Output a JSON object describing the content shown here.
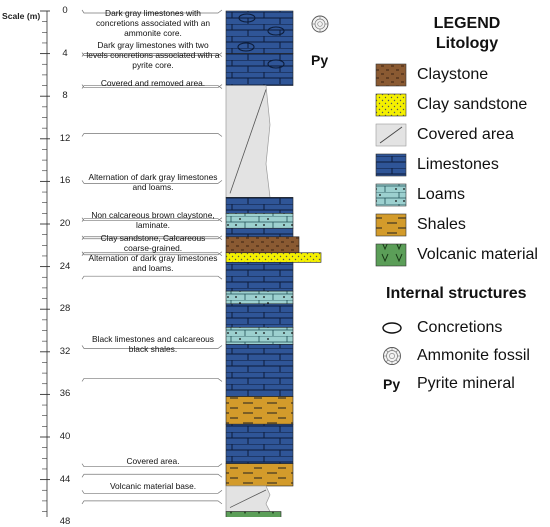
{
  "scale": {
    "title": "Scale (m)",
    "ticks": [
      "0",
      "4",
      "8",
      "12",
      "16",
      "20",
      "24",
      "28",
      "32",
      "36",
      "40",
      "44",
      "48"
    ]
  },
  "column": {
    "py_marker": "Py",
    "units": [
      {
        "from": 0,
        "to": 4,
        "lithology": "limestone",
        "notes": "concretions, ammonite fossil"
      },
      {
        "from": 4,
        "to": 7,
        "lithology": "limestone",
        "notes": "concretions"
      },
      {
        "from": 7,
        "to": 17.5,
        "lithology": "covered"
      },
      {
        "from": 17.5,
        "to": 19,
        "lithology": "limestone"
      },
      {
        "from": 19,
        "to": 20.4,
        "lithology": "loam"
      },
      {
        "from": 20.4,
        "to": 21.2,
        "lithology": "limestone"
      },
      {
        "from": 21.2,
        "to": 22.7,
        "lithology": "claystone"
      },
      {
        "from": 22.7,
        "to": 23.6,
        "lithology": "clay_sandstone"
      },
      {
        "from": 23.6,
        "to": 26.3,
        "lithology": "limestone"
      },
      {
        "from": 26.3,
        "to": 27.5,
        "lithology": "loam"
      },
      {
        "from": 27.5,
        "to": 29.7,
        "lithology": "limestone"
      },
      {
        "from": 29.7,
        "to": 31.3,
        "lithology": "loam"
      },
      {
        "from": 31.3,
        "to": 36.2,
        "lithology": "limestone"
      },
      {
        "from": 36.2,
        "to": 38.8,
        "lithology": "shale"
      },
      {
        "from": 38.8,
        "to": 42.5,
        "lithology": "limestone"
      },
      {
        "from": 42.5,
        "to": 44.6,
        "lithology": "shale"
      },
      {
        "from": 44.6,
        "to": 47.0,
        "lithology": "covered"
      },
      {
        "from": 47.0,
        "to": 48.0,
        "lithology": "volcanic"
      }
    ]
  },
  "descriptions": [
    {
      "text": "Dark gray limestones with concretions associated with an ammonite core."
    },
    {
      "text": "Dark gray limestones with two levels concretions associated with a pyrite core."
    },
    {
      "text": "Covered and removed area."
    },
    {
      "text": "Alternation of dark gray limestones and loams."
    },
    {
      "text": "Non calcareous brown claystone, laminate."
    },
    {
      "text": "Clay sandstone, Calcareous coarse-grained."
    },
    {
      "text": "Alternation of dark gray limestones and loams."
    },
    {
      "text": "Black limestones and calcareous black shales."
    },
    {
      "text": "Covered area."
    },
    {
      "text": "Volcanic material base."
    }
  ],
  "legend": {
    "title_line1": "LEGEND",
    "title_line2": "Litology",
    "items": [
      {
        "label": "Claystone",
        "pattern": "claystone",
        "color": "#8a5a32"
      },
      {
        "label": "Clay sandstone",
        "pattern": "clay_sandstone",
        "color": "#f4f000"
      },
      {
        "label": "Covered area",
        "pattern": "covered",
        "color": "#d8d8d8"
      },
      {
        "label": "Limestones",
        "pattern": "limestone",
        "color": "#2f5597"
      },
      {
        "label": "Loams",
        "pattern": "loam",
        "color": "#9cd0cf"
      },
      {
        "label": "Shales",
        "pattern": "shale",
        "color": "#d39b2b"
      },
      {
        "label": "Volcanic material",
        "pattern": "volcanic",
        "color": "#5b9e58"
      }
    ],
    "structures_title": "Internal structures",
    "structures": [
      {
        "label": "Concretions",
        "icon": "concretion-icon"
      },
      {
        "label": "Ammonite fossil",
        "icon": "ammonite-icon"
      },
      {
        "label": "Pyrite mineral",
        "icon_text": "Py"
      }
    ]
  }
}
